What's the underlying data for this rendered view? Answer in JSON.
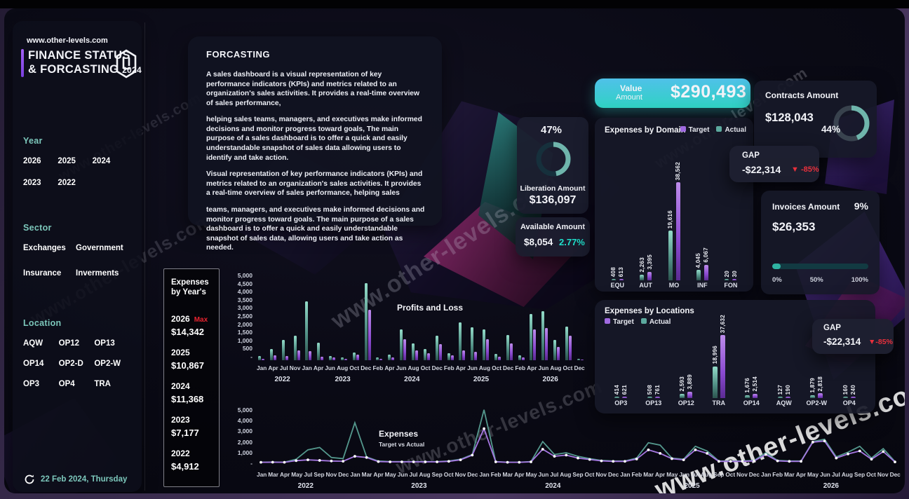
{
  "site": "www.other-levels.com",
  "watermark": "www.other-levels.com",
  "header": {
    "title_line1": "FINANCE STATUS",
    "title_line2": "& FORCASTING",
    "title_year": "2024",
    "footer_date": "22 Feb 2024, Thursday"
  },
  "sidebar": {
    "year_label": "Year",
    "years": [
      "2026",
      "2025",
      "2024",
      "2023",
      "2022"
    ],
    "sector_label": "Sector",
    "sectors": [
      "Exchanges",
      "Government",
      "Insurance",
      "Inverments"
    ],
    "location_label": "Location",
    "locations": [
      "AQW",
      "OP12",
      "OP13",
      "OP14",
      "OP2-D",
      "OP2-W",
      "OP3",
      "OP4",
      "TRA"
    ]
  },
  "forcasting": {
    "title": "FORCASTING",
    "paragraphs": [
      "A sales dashboard is a visual representation of key performance indicators (KPIs) and metrics related to an organization's sales activities. It provides a real-time overview of sales performance,",
      "helping sales teams, managers, and executives make informed decisions and monitor progress toward goals, The main purpose of a sales dashboard is to offer a quick and easily understandable snapshot of sales data allowing users to identify and take action.",
      "Visual representation of key performance indicators (KPIs) and metrics related to an organization's sales activities. It provides a real-time overview of sales performance, helping sales",
      "teams, managers, and executives make informed decisions and monitor progress toward goals. The main purpose of a sales dashboard is to offer a quick and easily understandable snapshot of sales data, allowing users and take action as needed."
    ]
  },
  "liberation": {
    "percent": "47%",
    "percent_value": 47,
    "label": "Liberation Amount",
    "value": "$136,097"
  },
  "available": {
    "label": "Available Amount",
    "value": "$8,054",
    "percent": "2.77%"
  },
  "value_banner": {
    "label_top": "Value",
    "label_bottom": "Amount",
    "value": "$290,493"
  },
  "contracts": {
    "label": "Contracts Amount",
    "value": "$128,043",
    "percent": "44%",
    "percent_value": 44
  },
  "gap_top": {
    "label": "GAP",
    "value": "-$22,314",
    "delta": "-85%"
  },
  "gap_locations": {
    "label": "GAP",
    "value": "-$22,314",
    "delta": "-85%"
  },
  "invoices": {
    "label": "Invoices Amount",
    "percent": "9%",
    "value": "$26,353",
    "progress_percent": 9,
    "scale": [
      "0%",
      "50%",
      "100%"
    ]
  },
  "years_panel": {
    "title_line1": "Expenses",
    "title_line2": "by Year's",
    "items": [
      {
        "year": "2026",
        "tag": "Max",
        "value": "$14,342"
      },
      {
        "year": "2025",
        "tag": "",
        "value": "$10,867"
      },
      {
        "year": "2024",
        "tag": "",
        "value": "$11,368"
      },
      {
        "year": "2023",
        "tag": "",
        "value": "$7,177"
      },
      {
        "year": "2022",
        "tag": "",
        "value": "$4,912"
      }
    ]
  },
  "legend": {
    "target": "Target",
    "actual": "Actual"
  },
  "chart_data": [
    {
      "id": "domain",
      "type": "bar",
      "title": "Expenses by Domain",
      "legend": [
        "Target",
        "Actual"
      ],
      "legend_position": "top-right",
      "categories": [
        "EQU",
        "AUT",
        "MO",
        "INF",
        "FON"
      ],
      "series": [
        {
          "name": "Actual",
          "color": "#5ca99e",
          "values": [
            408,
            2263,
            19616,
            4045,
            20
          ]
        },
        {
          "name": "Target",
          "color": "#a06ae0",
          "values": [
            613,
            3395,
            38562,
            6067,
            30
          ]
        }
      ],
      "ymax": 38562,
      "value_labels": true
    },
    {
      "id": "locations",
      "type": "bar",
      "title": "Expenses by Locations",
      "legend": [
        "Target",
        "Actual"
      ],
      "legend_position": "top-left",
      "categories": [
        "OP3",
        "OP13",
        "OP12",
        "TRA",
        "OP14",
        "AQW",
        "OP2-W",
        "OP4"
      ],
      "series": [
        {
          "name": "Actual",
          "color": "#5ca99e",
          "values": [
            414,
            508,
            2593,
            18996,
            1676,
            127,
            1879,
            160
          ]
        },
        {
          "name": "Target",
          "color": "#a06ae0",
          "values": [
            621,
            761,
            3889,
            37632,
            2514,
            190,
            2818,
            240
          ]
        }
      ],
      "ymax": 37632,
      "value_labels": true
    },
    {
      "id": "pnl",
      "type": "bar",
      "title": "Profits and Loss",
      "y_ticks": [
        "5,000",
        "4,500",
        "4,000",
        "3,500",
        "3,000",
        "2,500",
        "2,000",
        "1,500",
        "1,000",
        "500",
        "-"
      ],
      "ylim": [
        0,
        5000
      ],
      "months": [
        "Jan",
        "Apr",
        "Jul",
        "Nov",
        "Jan",
        "Apr",
        "Jun",
        "Aug",
        "Oct",
        "Dec",
        "Feb",
        "Apr",
        "Jun",
        "Aug",
        "Oct",
        "Dec",
        "Feb",
        "Apr",
        "Jun",
        "Aug",
        "Oct",
        "Dec",
        "Feb",
        "Apr",
        "Jun",
        "Aug",
        "Oct",
        "Dec"
      ],
      "year_groups": [
        {
          "label": "2022",
          "span": 4
        },
        {
          "label": "2023",
          "span": 6
        },
        {
          "label": "2024",
          "span": 6
        },
        {
          "label": "2025",
          "span": 6
        },
        {
          "label": "2026",
          "span": 6
        }
      ],
      "series": [
        {
          "name": "Actual",
          "color": "#5ca99e",
          "values": [
            250,
            650,
            1200,
            1450,
            3500,
            1050,
            250,
            150,
            450,
            4600,
            150,
            350,
            1850,
            1000,
            650,
            1450,
            420,
            2250,
            1950,
            1850,
            380,
            1500,
            280,
            2750,
            2900,
            1200,
            2000,
            80
          ]
        },
        {
          "name": "Target",
          "color": "#a06ae0",
          "values": [
            80,
            280,
            250,
            600,
            560,
            220,
            150,
            100,
            350,
            3000,
            80,
            180,
            1250,
            600,
            420,
            950,
            280,
            600,
            480,
            1250,
            200,
            1000,
            180,
            1850,
            1900,
            800,
            1450,
            40
          ]
        }
      ]
    },
    {
      "id": "expenses_line",
      "type": "line",
      "title": "Expenses",
      "subtitle": "Target vs Actual",
      "y_ticks": [
        "5,000",
        "4,000",
        "3,000",
        "2,000",
        "1,000",
        "-"
      ],
      "ylim": [
        0,
        5000
      ],
      "months": [
        "Jan",
        "Mar",
        "Apr",
        "May",
        "Jul",
        "Sep",
        "Nov",
        "Dec",
        "Jan",
        "Mar",
        "Apr",
        "May",
        "Jun",
        "Jul",
        "Aug",
        "Sep",
        "Oct",
        "Nov",
        "Dec",
        "Jan",
        "Feb",
        "Mar",
        "Apr",
        "May",
        "Jun",
        "Jul",
        "Aug",
        "Sep",
        "Oct",
        "Nov",
        "Dec",
        "Jan",
        "Feb",
        "Mar",
        "Apr",
        "May",
        "Jun",
        "Jul",
        "Aug",
        "Sep",
        "Oct",
        "Nov",
        "Dec",
        "Jan",
        "Feb",
        "Mar",
        "Apr",
        "May",
        "Jun",
        "Jul",
        "Aug",
        "Sep",
        "Oct",
        "Nov",
        "Dec"
      ],
      "year_groups": [
        {
          "label": "2022",
          "span": 8
        },
        {
          "label": "2023",
          "span": 11
        },
        {
          "label": "2024",
          "span": 12
        },
        {
          "label": "2025",
          "span": 12
        },
        {
          "label": "2026",
          "span": 12
        }
      ],
      "series": [
        {
          "name": "Actual",
          "color": "#54988d",
          "values": [
            150,
            160,
            150,
            400,
            1200,
            1400,
            550,
            450,
            3500,
            600,
            250,
            200,
            200,
            200,
            200,
            200,
            250,
            400,
            800,
            4600,
            200,
            150,
            150,
            200,
            1900,
            800,
            950,
            650,
            450,
            300,
            250,
            250,
            500,
            1800,
            1600,
            500,
            400,
            1500,
            1100,
            250,
            250,
            250,
            300,
            950,
            300,
            250,
            250,
            1900,
            2100,
            600,
            1000,
            1500,
            500,
            1300,
            200
          ]
        },
        {
          "name": "Target",
          "color": "#a678e2",
          "values": [
            140,
            150,
            140,
            280,
            350,
            300,
            250,
            230,
            650,
            550,
            200,
            180,
            180,
            180,
            180,
            180,
            220,
            350,
            750,
            3000,
            180,
            140,
            140,
            180,
            1250,
            650,
            750,
            500,
            380,
            260,
            220,
            220,
            420,
            1200,
            900,
            450,
            350,
            1200,
            900,
            220,
            220,
            220,
            260,
            800,
            260,
            220,
            220,
            1850,
            1950,
            500,
            850,
            1100,
            400,
            1050,
            170
          ]
        }
      ]
    }
  ]
}
